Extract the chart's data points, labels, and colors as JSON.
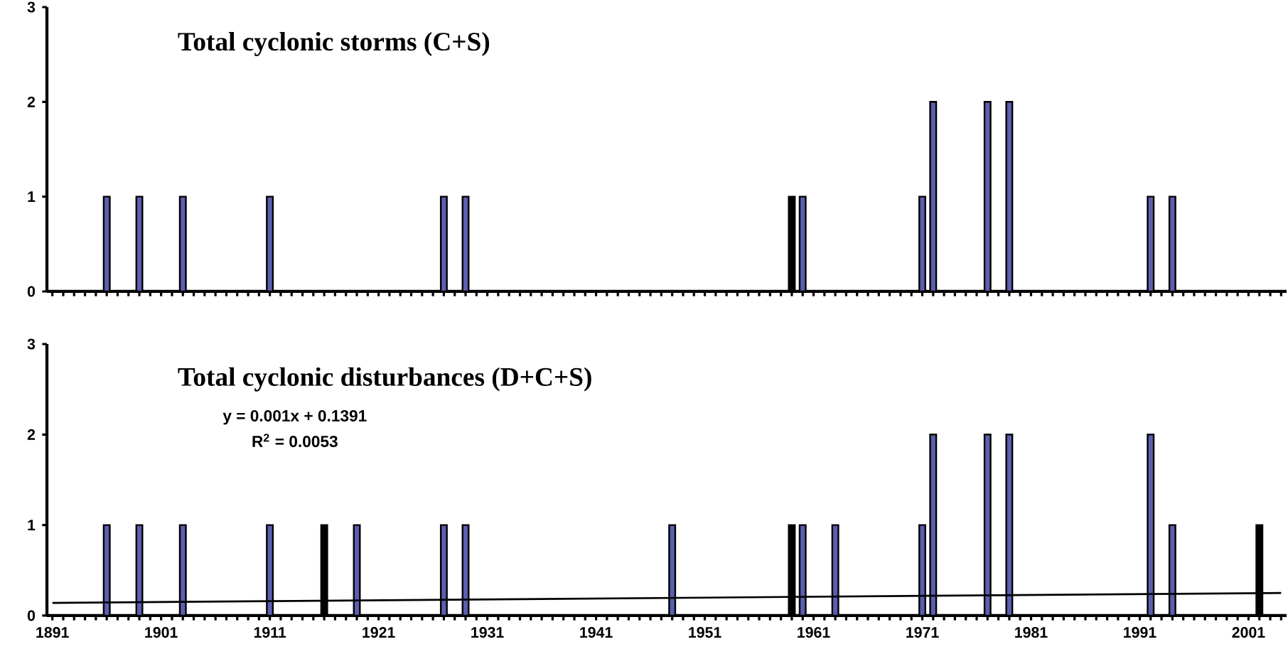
{
  "chart_data": [
    {
      "type": "bar",
      "title": "**Total cyclonic storms (C+S)**",
      "x": [
        1896,
        1899,
        1903,
        1911,
        1927,
        1929,
        1959,
        1960,
        1971,
        1972,
        1977,
        1979,
        1992,
        1994
      ],
      "values": [
        1,
        1,
        1,
        1,
        1,
        1,
        1,
        1,
        1,
        2,
        2,
        2,
        1,
        1
      ],
      "colors": [
        "#5b5fb0",
        "#5b5fb0",
        "#5b5fb0",
        "#5b5fb0",
        "#5b5fb0",
        "#5b5fb0",
        "#000000",
        "#5b5fb0",
        "#5b5fb0",
        "#5b5fb0",
        "#5b5fb0",
        "#5b5fb0",
        "#5b5fb0",
        "#5b5fb0"
      ],
      "xlim": [
        1890.5,
        2004.5
      ],
      "ylim": [
        0,
        3
      ],
      "yticks": [
        0,
        1,
        2,
        3
      ],
      "xticks": [
        {
          "value": 1891,
          "label": null
        },
        {
          "value": 1892,
          "label": null
        },
        {
          "value": 1893,
          "label": null
        },
        {
          "value": 1894,
          "label": null
        },
        {
          "value": 1895,
          "label": null
        },
        {
          "value": 1896,
          "label": null
        },
        {
          "value": 1897,
          "label": null
        },
        {
          "value": 1898,
          "label": null
        },
        {
          "value": 1899,
          "label": null
        },
        {
          "value": 1900,
          "label": null
        },
        {
          "value": 1901,
          "label": null
        },
        {
          "value": 1902,
          "label": null
        },
        {
          "value": 1903,
          "label": null
        },
        {
          "value": 1904,
          "label": null
        },
        {
          "value": 1905,
          "label": null
        },
        {
          "value": 1906,
          "label": null
        },
        {
          "value": 1907,
          "label": null
        },
        {
          "value": 1908,
          "label": null
        },
        {
          "value": 1909,
          "label": null
        },
        {
          "value": 1910,
          "label": null
        },
        {
          "value": 1911,
          "label": null
        },
        {
          "value": 1912,
          "label": null
        },
        {
          "value": 1913,
          "label": null
        },
        {
          "value": 1914,
          "label": null
        },
        {
          "value": 1915,
          "label": null
        },
        {
          "value": 1916,
          "label": null
        },
        {
          "value": 1917,
          "label": null
        },
        {
          "value": 1918,
          "label": null
        },
        {
          "value": 1919,
          "label": null
        },
        {
          "value": 1920,
          "label": null
        },
        {
          "value": 1921,
          "label": null
        },
        {
          "value": 1922,
          "label": null
        },
        {
          "value": 1923,
          "label": null
        },
        {
          "value": 1924,
          "label": null
        },
        {
          "value": 1925,
          "label": null
        },
        {
          "value": 1926,
          "label": null
        },
        {
          "value": 1927,
          "label": null
        },
        {
          "value": 1928,
          "label": null
        },
        {
          "value": 1929,
          "label": null
        },
        {
          "value": 1930,
          "label": null
        },
        {
          "value": 1931,
          "label": null
        },
        {
          "value": 1932,
          "label": null
        },
        {
          "value": 1933,
          "label": null
        },
        {
          "value": 1934,
          "label": null
        },
        {
          "value": 1935,
          "label": null
        },
        {
          "value": 1936,
          "label": null
        },
        {
          "value": 1937,
          "label": null
        },
        {
          "value": 1938,
          "label": null
        },
        {
          "value": 1939,
          "label": null
        },
        {
          "value": 1940,
          "label": null
        },
        {
          "value": 1941,
          "label": null
        },
        {
          "value": 1942,
          "label": null
        },
        {
          "value": 1943,
          "label": null
        },
        {
          "value": 1944,
          "label": null
        },
        {
          "value": 1945,
          "label": null
        },
        {
          "value": 1946,
          "label": null
        },
        {
          "value": 1947,
          "label": null
        },
        {
          "value": 1948,
          "label": null
        },
        {
          "value": 1949,
          "label": null
        },
        {
          "value": 1950,
          "label": null
        },
        {
          "value": 1951,
          "label": null
        },
        {
          "value": 1952,
          "label": null
        },
        {
          "value": 1953,
          "label": null
        },
        {
          "value": 1954,
          "label": null
        },
        {
          "value": 1955,
          "label": null
        },
        {
          "value": 1956,
          "label": null
        },
        {
          "value": 1957,
          "label": null
        },
        {
          "value": 1958,
          "label": null
        },
        {
          "value": 1959,
          "label": null
        },
        {
          "value": 1960,
          "label": null
        },
        {
          "value": 1961,
          "label": null
        },
        {
          "value": 1962,
          "label": null
        },
        {
          "value": 1963,
          "label": null
        },
        {
          "value": 1964,
          "label": null
        },
        {
          "value": 1965,
          "label": null
        },
        {
          "value": 1966,
          "label": null
        },
        {
          "value": 1967,
          "label": null
        },
        {
          "value": 1968,
          "label": null
        },
        {
          "value": 1969,
          "label": null
        },
        {
          "value": 1970,
          "label": null
        },
        {
          "value": 1971,
          "label": null
        },
        {
          "value": 1972,
          "label": null
        },
        {
          "value": 1973,
          "label": null
        },
        {
          "value": 1974,
          "label": null
        },
        {
          "value": 1975,
          "label": null
        },
        {
          "value": 1976,
          "label": null
        },
        {
          "value": 1977,
          "label": null
        },
        {
          "value": 1978,
          "label": null
        },
        {
          "value": 1979,
          "label": null
        },
        {
          "value": 1980,
          "label": null
        },
        {
          "value": 1981,
          "label": null
        },
        {
          "value": 1982,
          "label": null
        },
        {
          "value": 1983,
          "label": null
        },
        {
          "value": 1984,
          "label": null
        },
        {
          "value": 1985,
          "label": null
        },
        {
          "value": 1986,
          "label": null
        },
        {
          "value": 1987,
          "label": null
        },
        {
          "value": 1988,
          "label": null
        },
        {
          "value": 1989,
          "label": null
        },
        {
          "value": 1990,
          "label": null
        },
        {
          "value": 1991,
          "label": null
        },
        {
          "value": 1992,
          "label": null
        },
        {
          "value": 1993,
          "label": null
        },
        {
          "value": 1994,
          "label": null
        },
        {
          "value": 1995,
          "label": null
        },
        {
          "value": 1996,
          "label": null
        },
        {
          "value": 1997,
          "label": null
        },
        {
          "value": 1998,
          "label": null
        },
        {
          "value": 1999,
          "label": null
        },
        {
          "value": 2000,
          "label": null
        },
        {
          "value": 2001,
          "label": null
        },
        {
          "value": 2002,
          "label": null
        },
        {
          "value": 2003,
          "label": null
        },
        {
          "value": 2004,
          "label": null
        }
      ],
      "tick_labels": "y"
    },
    {
      "type": "bar",
      "title": "**Total cyclonic disturbances (D+C+S)**",
      "annotations": [
        "y = 0.001x + 0.1391",
        "R$^{2}$ = 0.0053"
      ],
      "series": [
        {
          "type": "bar",
          "x": [
            1896,
            1899,
            1903,
            1911,
            1916,
            1919,
            1927,
            1929,
            1948,
            1959,
            1960,
            1963,
            1971,
            1972,
            1977,
            1979,
            1992,
            1994,
            2002
          ],
          "values": [
            1,
            1,
            1,
            1,
            1,
            1,
            1,
            1,
            1,
            1,
            1,
            1,
            1,
            2,
            2,
            2,
            2,
            1,
            1
          ],
          "colors": [
            "#5b5fb0",
            "#5b5fb0",
            "#5b5fb0",
            "#5b5fb0",
            "#000000",
            "#5b5fb0",
            "#5b5fb0",
            "#5b5fb0",
            "#5b5fb0",
            "#000000",
            "#5b5fb0",
            "#5b5fb0",
            "#5b5fb0",
            "#5b5fb0",
            "#5b5fb0",
            "#5b5fb0",
            "#5b5fb0",
            "#5b5fb0",
            "#000000"
          ]
        },
        {
          "type": "line",
          "color": "#000000",
          "x": [
            1891,
            2004
          ],
          "values": [
            0.14,
            0.25
          ]
        }
      ],
      "xlim": [
        1890.5,
        2004.5
      ],
      "ylim": [
        0,
        3
      ],
      "yticks": [
        0,
        1,
        2,
        3
      ],
      "xticks": [
        1891,
        {
          "value": 1892,
          "label": null
        },
        {
          "value": 1893,
          "label": null
        },
        {
          "value": 1894,
          "label": null
        },
        {
          "value": 1895,
          "label": null
        },
        {
          "value": 1896,
          "label": null
        },
        {
          "value": 1897,
          "label": null
        },
        {
          "value": 1898,
          "label": null
        },
        {
          "value": 1899,
          "label": null
        },
        {
          "value": 1900,
          "label": null
        },
        1901,
        {
          "value": 1902,
          "label": null
        },
        {
          "value": 1903,
          "label": null
        },
        {
          "value": 1904,
          "label": null
        },
        {
          "value": 1905,
          "label": null
        },
        {
          "value": 1906,
          "label": null
        },
        {
          "value": 1907,
          "label": null
        },
        {
          "value": 1908,
          "label": null
        },
        {
          "value": 1909,
          "label": null
        },
        {
          "value": 1910,
          "label": null
        },
        1911,
        {
          "value": 1912,
          "label": null
        },
        {
          "value": 1913,
          "label": null
        },
        {
          "value": 1914,
          "label": null
        },
        {
          "value": 1915,
          "label": null
        },
        {
          "value": 1916,
          "label": null
        },
        {
          "value": 1917,
          "label": null
        },
        {
          "value": 1918,
          "label": null
        },
        {
          "value": 1919,
          "label": null
        },
        {
          "value": 1920,
          "label": null
        },
        1921,
        {
          "value": 1922,
          "label": null
        },
        {
          "value": 1923,
          "label": null
        },
        {
          "value": 1924,
          "label": null
        },
        {
          "value": 1925,
          "label": null
        },
        {
          "value": 1926,
          "label": null
        },
        {
          "value": 1927,
          "label": null
        },
        {
          "value": 1928,
          "label": null
        },
        {
          "value": 1929,
          "label": null
        },
        {
          "value": 1930,
          "label": null
        },
        1931,
        {
          "value": 1932,
          "label": null
        },
        {
          "value": 1933,
          "label": null
        },
        {
          "value": 1934,
          "label": null
        },
        {
          "value": 1935,
          "label": null
        },
        {
          "value": 1936,
          "label": null
        },
        {
          "value": 1937,
          "label": null
        },
        {
          "value": 1938,
          "label": null
        },
        {
          "value": 1939,
          "label": null
        },
        {
          "value": 1940,
          "label": null
        },
        1941,
        {
          "value": 1942,
          "label": null
        },
        {
          "value": 1943,
          "label": null
        },
        {
          "value": 1944,
          "label": null
        },
        {
          "value": 1945,
          "label": null
        },
        {
          "value": 1946,
          "label": null
        },
        {
          "value": 1947,
          "label": null
        },
        {
          "value": 1948,
          "label": null
        },
        {
          "value": 1949,
          "label": null
        },
        {
          "value": 1950,
          "label": null
        },
        1951,
        {
          "value": 1952,
          "label": null
        },
        {
          "value": 1953,
          "label": null
        },
        {
          "value": 1954,
          "label": null
        },
        {
          "value": 1955,
          "label": null
        },
        {
          "value": 1956,
          "label": null
        },
        {
          "value": 1957,
          "label": null
        },
        {
          "value": 1958,
          "label": null
        },
        {
          "value": 1959,
          "label": null
        },
        {
          "value": 1960,
          "label": null
        },
        1961,
        {
          "value": 1962,
          "label": null
        },
        {
          "value": 1963,
          "label": null
        },
        {
          "value": 1964,
          "label": null
        },
        {
          "value": 1965,
          "label": null
        },
        {
          "value": 1966,
          "label": null
        },
        {
          "value": 1967,
          "label": null
        },
        {
          "value": 1968,
          "label": null
        },
        {
          "value": 1969,
          "label": null
        },
        {
          "value": 1970,
          "label": null
        },
        1971,
        {
          "value": 1972,
          "label": null
        },
        {
          "value": 1973,
          "label": null
        },
        {
          "value": 1974,
          "label": null
        },
        {
          "value": 1975,
          "label": null
        },
        {
          "value": 1976,
          "label": null
        },
        {
          "value": 1977,
          "label": null
        },
        {
          "value": 1978,
          "label": null
        },
        {
          "value": 1979,
          "label": null
        },
        {
          "value": 1980,
          "label": null
        },
        1981,
        {
          "value": 1982,
          "label": null
        },
        {
          "value": 1983,
          "label": null
        },
        {
          "value": 1984,
          "label": null
        },
        {
          "value": 1985,
          "label": null
        },
        {
          "value": 1986,
          "label": null
        },
        {
          "value": 1987,
          "label": null
        },
        {
          "value": 1988,
          "label": null
        },
        {
          "value": 1989,
          "label": null
        },
        {
          "value": 1990,
          "label": null
        },
        1991,
        {
          "value": 1992,
          "label": null
        },
        {
          "value": 1993,
          "label": null
        },
        {
          "value": 1994,
          "label": null
        },
        {
          "value": 1995,
          "label": null
        },
        {
          "value": 1996,
          "label": null
        },
        {
          "value": 1997,
          "label": null
        },
        {
          "value": 1998,
          "label": null
        },
        {
          "value": 1999,
          "label": null
        },
        {
          "value": 2000,
          "label": null
        },
        2001,
        {
          "value": 2002,
          "label": null
        },
        {
          "value": 2003,
          "label": null
        },
        {
          "value": 2004,
          "label": null
        }
      ]
    }
  ]
}
